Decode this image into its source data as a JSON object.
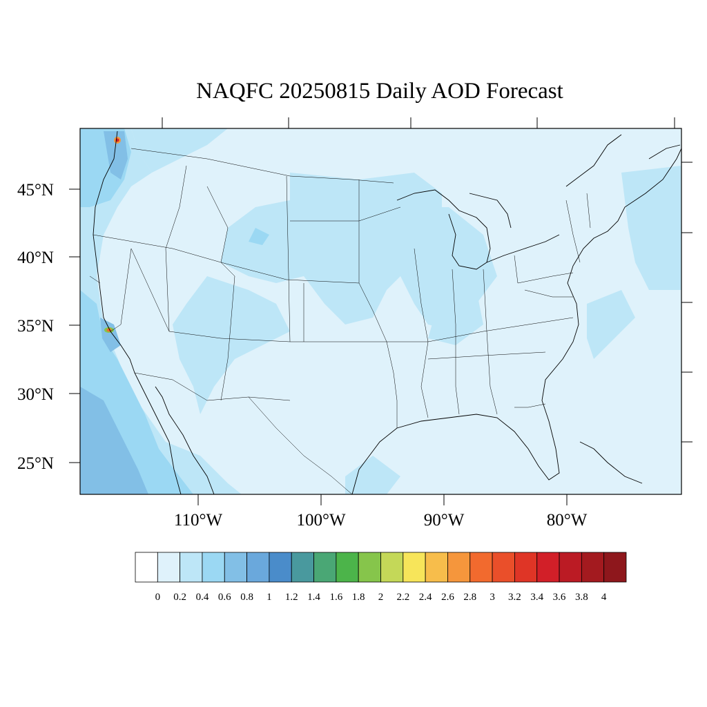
{
  "title": "NAQFC 20250815 Daily AOD Forecast",
  "lat_labels": [
    "45°N",
    "40°N",
    "35°N",
    "30°N",
    "25°N"
  ],
  "lon_labels": [
    "110°W",
    "100°W",
    "90°W",
    "80°W"
  ],
  "map": {
    "projection": "lambert-conformal",
    "background_color": "#dff2fb",
    "border_color": "#000000"
  },
  "colorbar": {
    "labels": [
      "0",
      "0.2",
      "0.4",
      "0.6",
      "0.8",
      "1",
      "1.2",
      "1.4",
      "1.6",
      "1.8",
      "2",
      "2.2",
      "2.4",
      "2.6",
      "2.8",
      "3",
      "3.2",
      "3.4",
      "3.6",
      "3.8",
      "4"
    ],
    "colors": [
      "#ffffff",
      "#dff2fb",
      "#bde6f7",
      "#9bd8f3",
      "#82bfe6",
      "#6aa8dc",
      "#4a8cca",
      "#49999e",
      "#4aa775",
      "#4cb44a",
      "#86c54b",
      "#c4d858",
      "#f7e55a",
      "#f7bd4b",
      "#f5963c",
      "#f26a2e",
      "#ea4f2a",
      "#df3526",
      "#d21f28",
      "#bb1b24",
      "#a31a1f",
      "#8e171c"
    ]
  }
}
